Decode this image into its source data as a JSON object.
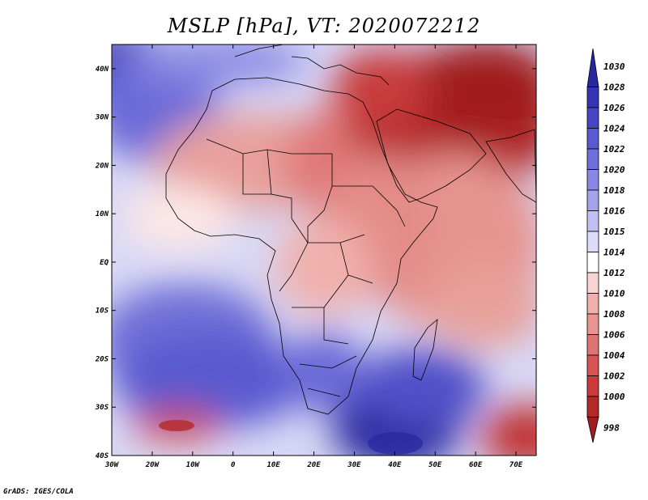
{
  "title": "MSLP [hPa], VT: 2020072212",
  "credit": "GrADS: IGES/COLA",
  "map": {
    "lon_ticks": [
      "30W",
      "20W",
      "10W",
      "0",
      "10E",
      "20E",
      "30E",
      "40E",
      "50E",
      "60E",
      "70E"
    ],
    "lat_ticks": [
      "40N",
      "30N",
      "20N",
      "10N",
      "EQ",
      "10S",
      "20S",
      "30S",
      "40S"
    ],
    "lon_range": [
      -30,
      75
    ],
    "lat_range": [
      -40,
      45
    ]
  },
  "colorbar": {
    "levels": [
      "1030",
      "1028",
      "1026",
      "1024",
      "1022",
      "1020",
      "1018",
      "1016",
      "1015",
      "1014",
      "1012",
      "1010",
      "1008",
      "1006",
      "1004",
      "1002",
      "1000",
      "998"
    ],
    "colors": [
      "#28289e",
      "#3434b4",
      "#4646c4",
      "#5a5ad0",
      "#6e6edc",
      "#8888e4",
      "#a4a4ec",
      "#c0c0f2",
      "#dcdcf8",
      "#ffffff",
      "#f6d4d2",
      "#f0b0ac",
      "#e89490",
      "#e07472",
      "#d85454",
      "#ca3a3a",
      "#b42828",
      "#a01e1e"
    ]
  }
}
